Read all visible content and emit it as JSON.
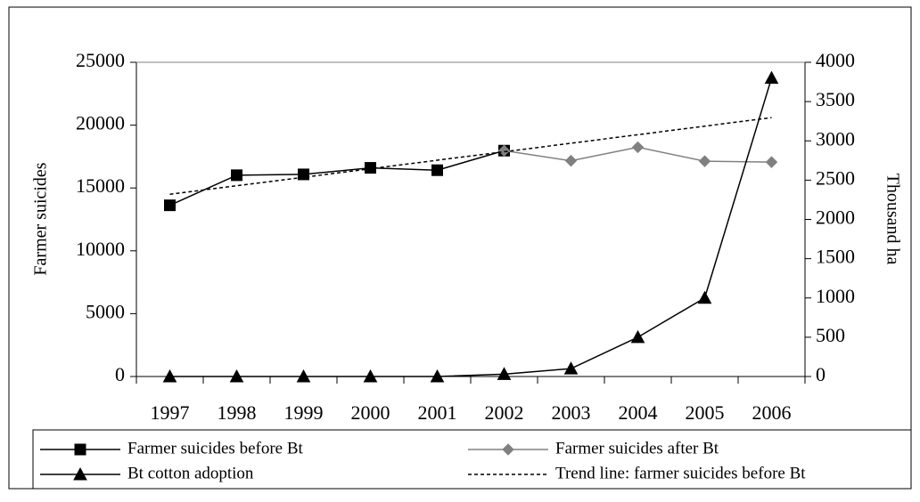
{
  "chart_data": {
    "type": "line",
    "categories": [
      "1997",
      "1998",
      "1999",
      "2000",
      "2001",
      "2002",
      "2003",
      "2004",
      "2005",
      "2006"
    ],
    "ylabel": "Farmer suicides",
    "y2label": "Thousand ha",
    "ylim": [
      0,
      25000
    ],
    "yticks": [
      0,
      5000,
      10000,
      15000,
      20000,
      25000
    ],
    "y2lim": [
      0,
      4000
    ],
    "y2ticks": [
      0,
      500,
      1000,
      1500,
      2000,
      2500,
      3000,
      3500,
      4000
    ],
    "series": [
      {
        "name": "Farmer suicides before Bt",
        "color": "#000000",
        "marker": "square",
        "values": [
          13622,
          16015,
          16082,
          16603,
          16415,
          17971,
          null,
          null,
          null,
          null
        ]
      },
      {
        "name": "Farmer suicides after Bt",
        "color": "#808080",
        "marker": "diamond",
        "values": [
          null,
          null,
          null,
          null,
          null,
          17971,
          17164,
          18241,
          17131,
          17060
        ]
      },
      {
        "name": "Bt cotton adoption",
        "color": "#000000",
        "marker": "triangle",
        "axis": "y2",
        "values": [
          0,
          0,
          0,
          0,
          0,
          30,
          100,
          500,
          1000,
          3800
        ]
      },
      {
        "name": "Trend line: farmer suicides before Bt",
        "color": "#000000",
        "marker": "none",
        "dash": true,
        "values": [
          14500,
          15180,
          15850,
          16530,
          17210,
          17880,
          18560,
          19240,
          19920,
          20600
        ]
      }
    ]
  }
}
